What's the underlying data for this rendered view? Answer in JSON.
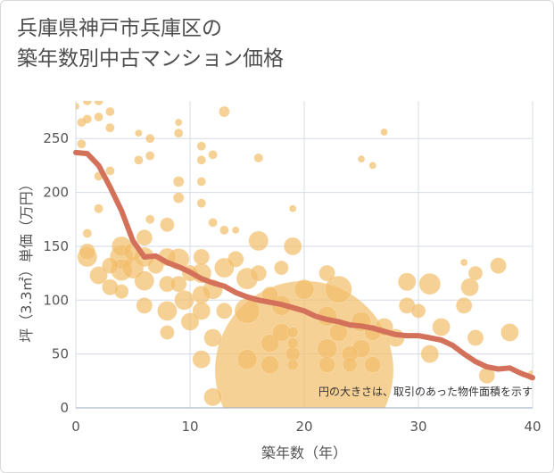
{
  "title_lines": [
    "兵庫県神戸市兵庫区の",
    "築年数別中古マンション価格"
  ],
  "colors": {
    "bubble": "#f2bd6a",
    "line": "#d4715a",
    "grid": "#d5dce6",
    "background": "#ffffff"
  },
  "chart_data": {
    "type": "scatter",
    "xlabel": "築年数（年）",
    "ylabel": "坪（3.3㎡）単価（万円）",
    "xlim": [
      0,
      40
    ],
    "ylim": [
      0,
      285
    ],
    "xticks": [
      0,
      10,
      20,
      30,
      40
    ],
    "yticks": [
      0,
      50,
      100,
      150,
      200,
      250
    ],
    "grid": true,
    "note": "円の大きさは、取引のあった物件面積を示す",
    "series": [
      {
        "type": "bubble",
        "points": [
          {
            "x": 0,
            "y": 280,
            "s": 4
          },
          {
            "x": 0.5,
            "y": 265,
            "s": 5
          },
          {
            "x": 1,
            "y": 285,
            "s": 5
          },
          {
            "x": 1,
            "y": 268,
            "s": 5
          },
          {
            "x": 2,
            "y": 285,
            "s": 5
          },
          {
            "x": 2,
            "y": 270,
            "s": 5
          },
          {
            "x": 3,
            "y": 275,
            "s": 5
          },
          {
            "x": 3,
            "y": 260,
            "s": 5
          },
          {
            "x": 0.5,
            "y": 245,
            "s": 5
          },
          {
            "x": 2,
            "y": 215,
            "s": 5
          },
          {
            "x": 3,
            "y": 220,
            "s": 5
          },
          {
            "x": 2,
            "y": 185,
            "s": 5
          },
          {
            "x": 1,
            "y": 162,
            "s": 5
          },
          {
            "x": 1,
            "y": 145,
            "s": 9
          },
          {
            "x": 1,
            "y": 140,
            "s": 11
          },
          {
            "x": 2,
            "y": 123,
            "s": 10
          },
          {
            "x": 3,
            "y": 132,
            "s": 9
          },
          {
            "x": 3,
            "y": 112,
            "s": 9
          },
          {
            "x": 4,
            "y": 150,
            "s": 11
          },
          {
            "x": 4,
            "y": 140,
            "s": 13
          },
          {
            "x": 4,
            "y": 128,
            "s": 12
          },
          {
            "x": 4,
            "y": 108,
            "s": 8
          },
          {
            "x": 5,
            "y": 145,
            "s": 10
          },
          {
            "x": 5,
            "y": 130,
            "s": 12
          },
          {
            "x": 6,
            "y": 158,
            "s": 9
          },
          {
            "x": 6,
            "y": 140,
            "s": 11
          },
          {
            "x": 6,
            "y": 118,
            "s": 11
          },
          {
            "x": 6,
            "y": 95,
            "s": 9
          },
          {
            "x": 5.5,
            "y": 255,
            "s": 4
          },
          {
            "x": 6.5,
            "y": 250,
            "s": 5
          },
          {
            "x": 5.5,
            "y": 230,
            "s": 5
          },
          {
            "x": 6.5,
            "y": 234,
            "s": 5
          },
          {
            "x": 6.5,
            "y": 175,
            "s": 5
          },
          {
            "x": 7,
            "y": 132,
            "s": 9
          },
          {
            "x": 8,
            "y": 170,
            "s": 8
          },
          {
            "x": 8,
            "y": 140,
            "s": 10
          },
          {
            "x": 8,
            "y": 115,
            "s": 9
          },
          {
            "x": 8,
            "y": 90,
            "s": 11
          },
          {
            "x": 8,
            "y": 70,
            "s": 8
          },
          {
            "x": 9,
            "y": 255,
            "s": 5
          },
          {
            "x": 9,
            "y": 265,
            "s": 4
          },
          {
            "x": 9,
            "y": 210,
            "s": 6
          },
          {
            "x": 9,
            "y": 195,
            "s": 6
          },
          {
            "x": 9,
            "y": 138,
            "s": 12
          },
          {
            "x": 9,
            "y": 115,
            "s": 9
          },
          {
            "x": 9.5,
            "y": 100,
            "s": 11
          },
          {
            "x": 10,
            "y": 80,
            "s": 10
          },
          {
            "x": 10,
            "y": 125,
            "s": 9
          },
          {
            "x": 11,
            "y": 243,
            "s": 5
          },
          {
            "x": 11,
            "y": 230,
            "s": 5
          },
          {
            "x": 12,
            "y": 235,
            "s": 5
          },
          {
            "x": 11,
            "y": 210,
            "s": 5
          },
          {
            "x": 11,
            "y": 190,
            "s": 5
          },
          {
            "x": 12,
            "y": 172,
            "s": 5
          },
          {
            "x": 11,
            "y": 140,
            "s": 9
          },
          {
            "x": 11,
            "y": 125,
            "s": 11
          },
          {
            "x": 11,
            "y": 105,
            "s": 10
          },
          {
            "x": 11,
            "y": 90,
            "s": 10
          },
          {
            "x": 11,
            "y": 45,
            "s": 10
          },
          {
            "x": 12,
            "y": 110,
            "s": 11
          },
          {
            "x": 12,
            "y": 65,
            "s": 10
          },
          {
            "x": 12,
            "y": 10,
            "s": 10
          },
          {
            "x": 13,
            "y": 275,
            "s": 6
          },
          {
            "x": 13,
            "y": 165,
            "s": 5
          },
          {
            "x": 13,
            "y": 130,
            "s": 11
          },
          {
            "x": 13,
            "y": 90,
            "s": 9
          },
          {
            "x": 14,
            "y": 165,
            "s": 4
          },
          {
            "x": 14,
            "y": 138,
            "s": 9
          },
          {
            "x": 15,
            "y": 120,
            "s": 12
          },
          {
            "x": 15,
            "y": 90,
            "s": 14
          },
          {
            "x": 15,
            "y": 45,
            "s": 11
          },
          {
            "x": 16,
            "y": 232,
            "s": 5
          },
          {
            "x": 16,
            "y": 155,
            "s": 11
          },
          {
            "x": 16,
            "y": 125,
            "s": 9
          },
          {
            "x": 17,
            "y": 105,
            "s": 9
          },
          {
            "x": 17,
            "y": 60,
            "s": 10
          },
          {
            "x": 17,
            "y": 40,
            "s": 10
          },
          {
            "x": 18,
            "y": 130,
            "s": 8
          },
          {
            "x": 18,
            "y": 95,
            "s": 11
          },
          {
            "x": 18,
            "y": 70,
            "s": 10
          },
          {
            "x": 19,
            "y": 185,
            "s": 4
          },
          {
            "x": 19,
            "y": 150,
            "s": 10
          },
          {
            "x": 19,
            "y": 70,
            "s": 6
          },
          {
            "x": 19,
            "y": 60,
            "s": 6
          },
          {
            "x": 19,
            "y": 50,
            "s": 8
          },
          {
            "x": 19,
            "y": 40,
            "s": 6
          },
          {
            "x": 20,
            "y": 110,
            "s": 11
          },
          {
            "x": 22,
            "y": 125,
            "s": 9
          },
          {
            "x": 22,
            "y": 85,
            "s": 11
          },
          {
            "x": 22,
            "y": 55,
            "s": 11
          },
          {
            "x": 22,
            "y": 40,
            "s": 9
          },
          {
            "x": 23,
            "y": 110,
            "s": 15
          },
          {
            "x": 23,
            "y": 70,
            "s": 10
          },
          {
            "x": 24,
            "y": 50,
            "s": 9
          },
          {
            "x": 24,
            "y": 40,
            "s": 8
          },
          {
            "x": 25,
            "y": 80,
            "s": 11
          },
          {
            "x": 25,
            "y": 55,
            "s": 10
          },
          {
            "x": 25,
            "y": 231,
            "s": 4
          },
          {
            "x": 26,
            "y": 225,
            "s": 4
          },
          {
            "x": 26,
            "y": 70,
            "s": 9
          },
          {
            "x": 26,
            "y": 40,
            "s": 9
          },
          {
            "x": 27,
            "y": 256,
            "s": 4
          },
          {
            "x": 27,
            "y": 75,
            "s": 10
          },
          {
            "x": 28,
            "y": 65,
            "s": 10
          },
          {
            "x": 29,
            "y": 117,
            "s": 10
          },
          {
            "x": 29,
            "y": 95,
            "s": 9
          },
          {
            "x": 30,
            "y": 90,
            "s": 8
          },
          {
            "x": 31,
            "y": 50,
            "s": 10
          },
          {
            "x": 31,
            "y": 115,
            "s": 12
          },
          {
            "x": 32,
            "y": 75,
            "s": 10
          },
          {
            "x": 34,
            "y": 135,
            "s": 4
          },
          {
            "x": 34,
            "y": 95,
            "s": 9
          },
          {
            "x": 34.5,
            "y": 112,
            "s": 10
          },
          {
            "x": 35,
            "y": 125,
            "s": 8
          },
          {
            "x": 35,
            "y": 65,
            "s": 9
          },
          {
            "x": 36,
            "y": 30,
            "s": 9
          },
          {
            "x": 37,
            "y": 132,
            "s": 9
          },
          {
            "x": 38,
            "y": 70,
            "s": 10
          },
          {
            "x": 40,
            "y": 30,
            "s": 6
          },
          {
            "x": 20,
            "y": 35,
            "s": 100
          }
        ]
      },
      {
        "type": "line",
        "x": [
          0,
          1,
          2,
          3,
          4,
          5,
          6,
          7,
          8,
          9,
          10,
          11,
          12,
          13,
          14,
          15,
          16,
          17,
          18,
          19,
          20,
          21,
          22,
          23,
          24,
          25,
          26,
          27,
          28,
          29,
          30,
          31,
          32,
          33,
          34,
          35,
          36,
          37,
          38,
          39,
          40
        ],
        "y": [
          237,
          236,
          225,
          205,
          183,
          155,
          140,
          141,
          135,
          131,
          126,
          120,
          116,
          113,
          107,
          103,
          100,
          98,
          96,
          93,
          90,
          85,
          82,
          80,
          77,
          76,
          74,
          71,
          68,
          67,
          67,
          65,
          63,
          58,
          50,
          43,
          38,
          36,
          37,
          32,
          28
        ]
      }
    ]
  }
}
